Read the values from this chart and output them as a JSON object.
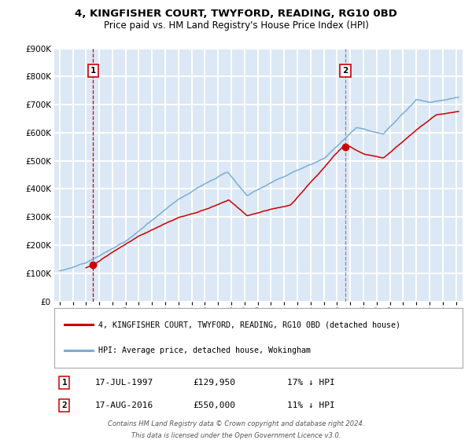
{
  "title_line1": "4, KINGFISHER COURT, TWYFORD, READING, RG10 0BD",
  "subtitle": "Price paid vs. HM Land Registry's House Price Index (HPI)",
  "legend_label1": "4, KINGFISHER COURT, TWYFORD, READING, RG10 0BD (detached house)",
  "legend_label2": "HPI: Average price, detached house, Wokingham",
  "marker1_date": 1997.54,
  "marker1_value": 129950,
  "marker2_date": 2016.63,
  "marker2_value": 550000,
  "table_row1": [
    "1",
    "17-JUL-1997",
    "£129,950",
    "17% ↓ HPI"
  ],
  "table_row2": [
    "2",
    "17-AUG-2016",
    "£550,000",
    "11% ↓ HPI"
  ],
  "footer_line1": "Contains HM Land Registry data © Crown copyright and database right 2024.",
  "footer_line2": "This data is licensed under the Open Government Licence v3.0.",
  "ymax": 900000,
  "xmin": 1994.6,
  "xmax": 2025.5,
  "bg_color": "#dce8f5",
  "grid_color": "#ffffff",
  "line1_color": "#cc0000",
  "line2_color": "#7aaed6",
  "marker_color": "#cc0000",
  "vline1_color": "#cc0000",
  "vline2_color": "#888888"
}
